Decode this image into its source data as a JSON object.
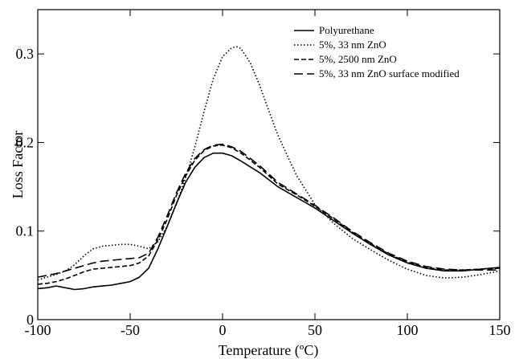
{
  "chart_data": {
    "type": "line",
    "title": "",
    "xlabel": "Temperature (ºC)",
    "ylabel": "Loss Factor",
    "xlim": [
      -100,
      150
    ],
    "ylim": [
      0,
      0.35
    ],
    "x_ticks": [
      -100,
      -50,
      0,
      50,
      100,
      150
    ],
    "x_tick_labels": [
      "-100",
      "-50",
      "0",
      "50",
      "100",
      "150"
    ],
    "y_ticks": [
      0,
      0.1,
      0.2,
      0.3
    ],
    "y_tick_labels": [
      "0",
      "0.1",
      "0.2",
      "0.3"
    ],
    "grid": false,
    "legend_position": "top-right",
    "series": [
      {
        "name": "Polyurethane",
        "line_style": "solid",
        "color": "#000000",
        "x": [
          -100,
          -95,
          -90,
          -85,
          -80,
          -75,
          -70,
          -65,
          -60,
          -55,
          -50,
          -45,
          -40,
          -35,
          -30,
          -25,
          -20,
          -15,
          -10,
          -5,
          0,
          5,
          10,
          20,
          30,
          40,
          50,
          60,
          70,
          80,
          90,
          100,
          110,
          120,
          130,
          140,
          150
        ],
        "y": [
          0.035,
          0.036,
          0.038,
          0.036,
          0.034,
          0.035,
          0.037,
          0.038,
          0.039,
          0.041,
          0.043,
          0.048,
          0.058,
          0.08,
          0.105,
          0.131,
          0.155,
          0.172,
          0.183,
          0.188,
          0.188,
          0.185,
          0.179,
          0.166,
          0.15,
          0.138,
          0.126,
          0.112,
          0.098,
          0.085,
          0.073,
          0.064,
          0.058,
          0.055,
          0.055,
          0.057,
          0.059
        ]
      },
      {
        "name": "5%, 33 nm ZnO",
        "line_style": "dotted",
        "color": "#000000",
        "x": [
          -100,
          -95,
          -90,
          -85,
          -80,
          -75,
          -70,
          -65,
          -60,
          -55,
          -50,
          -45,
          -40,
          -35,
          -30,
          -25,
          -20,
          -15,
          -10,
          -5,
          0,
          5,
          8,
          10,
          15,
          20,
          25,
          30,
          40,
          50,
          60,
          70,
          80,
          90,
          100,
          110,
          120,
          130,
          140,
          150
        ],
        "y": [
          0.045,
          0.048,
          0.051,
          0.055,
          0.062,
          0.072,
          0.08,
          0.083,
          0.084,
          0.085,
          0.085,
          0.083,
          0.08,
          0.088,
          0.105,
          0.13,
          0.16,
          0.195,
          0.235,
          0.272,
          0.297,
          0.307,
          0.308,
          0.306,
          0.29,
          0.265,
          0.236,
          0.208,
          0.163,
          0.13,
          0.109,
          0.092,
          0.079,
          0.067,
          0.057,
          0.05,
          0.047,
          0.048,
          0.051,
          0.055
        ]
      },
      {
        "name": "5%, 2500 nm ZnO",
        "line_style": "dashed",
        "color": "#000000",
        "x": [
          -100,
          -95,
          -90,
          -85,
          -80,
          -75,
          -70,
          -65,
          -60,
          -55,
          -50,
          -45,
          -40,
          -35,
          -30,
          -25,
          -20,
          -15,
          -10,
          -5,
          0,
          5,
          10,
          20,
          30,
          40,
          50,
          60,
          70,
          80,
          90,
          100,
          110,
          120,
          130,
          140,
          150
        ],
        "y": [
          0.04,
          0.041,
          0.043,
          0.046,
          0.05,
          0.054,
          0.057,
          0.058,
          0.059,
          0.06,
          0.061,
          0.064,
          0.072,
          0.09,
          0.113,
          0.14,
          0.162,
          0.18,
          0.191,
          0.196,
          0.197,
          0.194,
          0.188,
          0.172,
          0.153,
          0.141,
          0.128,
          0.114,
          0.099,
          0.086,
          0.074,
          0.065,
          0.059,
          0.056,
          0.056,
          0.057,
          0.058
        ]
      },
      {
        "name": "5%, 33 nm ZnO surface modified",
        "line_style": "long-dash",
        "color": "#000000",
        "x": [
          -100,
          -95,
          -90,
          -85,
          -80,
          -75,
          -70,
          -65,
          -60,
          -55,
          -50,
          -45,
          -40,
          -35,
          -30,
          -25,
          -20,
          -15,
          -10,
          -5,
          0,
          5,
          10,
          20,
          30,
          40,
          50,
          60,
          70,
          80,
          90,
          100,
          110,
          120,
          130,
          140,
          150
        ],
        "y": [
          0.048,
          0.05,
          0.052,
          0.055,
          0.058,
          0.061,
          0.064,
          0.066,
          0.067,
          0.068,
          0.069,
          0.07,
          0.075,
          0.093,
          0.117,
          0.143,
          0.165,
          0.182,
          0.192,
          0.197,
          0.198,
          0.195,
          0.19,
          0.174,
          0.155,
          0.142,
          0.129,
          0.115,
          0.1,
          0.087,
          0.075,
          0.066,
          0.06,
          0.057,
          0.056,
          0.056,
          0.056
        ]
      }
    ]
  }
}
